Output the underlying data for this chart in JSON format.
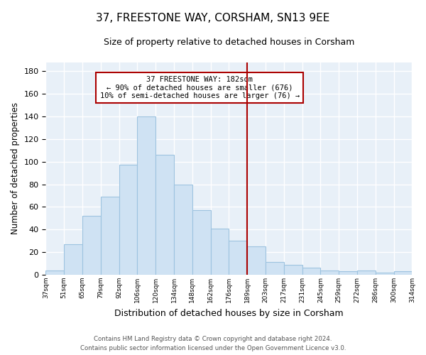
{
  "title": "37, FREESTONE WAY, CORSHAM, SN13 9EE",
  "subtitle": "Size of property relative to detached houses in Corsham",
  "xlabel": "Distribution of detached houses by size in Corsham",
  "ylabel": "Number of detached properties",
  "bar_labels": [
    "37sqm",
    "51sqm",
    "65sqm",
    "79sqm",
    "92sqm",
    "106sqm",
    "120sqm",
    "134sqm",
    "148sqm",
    "162sqm",
    "176sqm",
    "189sqm",
    "203sqm",
    "217sqm",
    "231sqm",
    "245sqm",
    "259sqm",
    "272sqm",
    "286sqm",
    "300sqm",
    "314sqm"
  ],
  "bar_heights": [
    4,
    27,
    52,
    69,
    97,
    140,
    106,
    80,
    57,
    41,
    30,
    25,
    11,
    9,
    6,
    4,
    3,
    4,
    2,
    3
  ],
  "bar_color": "#cfe2f3",
  "bar_edge_color": "#9dc3e0",
  "vline_color": "#aa0000",
  "annotation_title": "37 FREESTONE WAY: 182sqm",
  "annotation_line1": "← 90% of detached houses are smaller (676)",
  "annotation_line2": "10% of semi-detached houses are larger (76) →",
  "ylim": [
    0,
    188
  ],
  "yticks": [
    0,
    20,
    40,
    60,
    80,
    100,
    120,
    140,
    160,
    180
  ],
  "footer_line1": "Contains HM Land Registry data © Crown copyright and database right 2024.",
  "footer_line2": "Contains public sector information licensed under the Open Government Licence v3.0.",
  "bg_color": "#ffffff",
  "plot_bg_color": "#e8f0f8",
  "grid_color": "#ffffff"
}
